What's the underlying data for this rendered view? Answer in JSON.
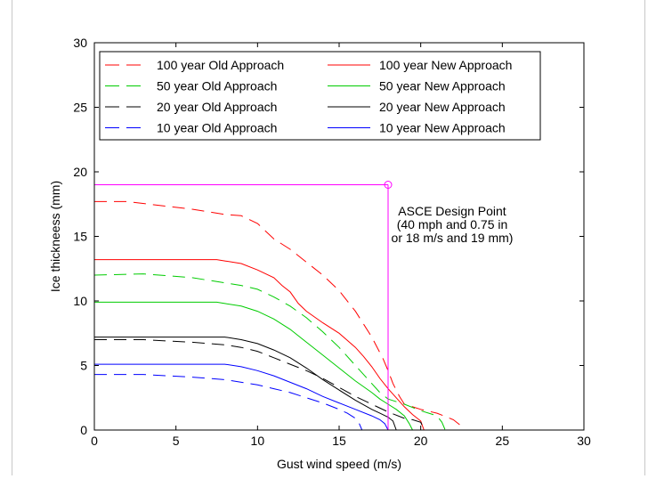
{
  "chart_data": {
    "type": "line",
    "xlabel": "Gust wind speed (m/s)",
    "ylabel": "Ice thickneess (mm)",
    "xlim": [
      0,
      30
    ],
    "ylim": [
      0,
      30
    ],
    "xticks": [
      0,
      5,
      10,
      15,
      20,
      25,
      30
    ],
    "yticks": [
      0,
      5,
      10,
      15,
      20,
      25,
      30
    ],
    "grid": false,
    "legend": {
      "placement": "top-left",
      "columns": 2
    },
    "series": [
      {
        "name": "100 year Old Approach",
        "color": "#ff0000",
        "dash": "dashed",
        "points": [
          [
            0,
            17.7
          ],
          [
            2,
            17.7
          ],
          [
            4,
            17.4
          ],
          [
            6,
            17.1
          ],
          [
            8,
            16.7
          ],
          [
            9,
            16.6
          ],
          [
            10,
            16.0
          ],
          [
            10.5,
            15.4
          ],
          [
            11,
            14.8
          ],
          [
            12,
            14.0
          ],
          [
            13,
            13.0
          ],
          [
            14,
            12.0
          ],
          [
            15,
            10.8
          ],
          [
            16,
            9.2
          ],
          [
            17,
            7.2
          ],
          [
            17.7,
            5.5
          ],
          [
            18,
            4.6
          ],
          [
            18.3,
            3.6
          ],
          [
            18.7,
            2.6
          ],
          [
            19,
            2.0
          ],
          [
            19.5,
            1.8
          ],
          [
            20,
            1.6
          ],
          [
            21,
            1.3
          ],
          [
            22,
            0.8
          ],
          [
            22.4,
            0.4
          ],
          [
            22.5,
            0
          ]
        ]
      },
      {
        "name": "100 year New Approach",
        "color": "#ff0000",
        "dash": "solid",
        "points": [
          [
            0,
            13.2
          ],
          [
            7.5,
            13.2
          ],
          [
            8,
            13.1
          ],
          [
            9,
            12.9
          ],
          [
            10,
            12.4
          ],
          [
            11,
            11.8
          ],
          [
            11.5,
            11.2
          ],
          [
            12,
            10.7
          ],
          [
            12.5,
            9.8
          ],
          [
            13,
            9.2
          ],
          [
            14,
            8.3
          ],
          [
            15,
            7.5
          ],
          [
            16,
            6.4
          ],
          [
            16.5,
            5.7
          ],
          [
            17,
            4.9
          ],
          [
            17.5,
            4.0
          ],
          [
            18,
            3.2
          ],
          [
            18.5,
            2.5
          ],
          [
            19,
            1.8
          ],
          [
            19.5,
            1.2
          ],
          [
            20,
            0.7
          ],
          [
            20.2,
            0
          ]
        ]
      },
      {
        "name": "50 year Old Approach",
        "color": "#00cc00",
        "dash": "dashed",
        "points": [
          [
            0,
            12.0
          ],
          [
            3,
            12.1
          ],
          [
            6,
            11.8
          ],
          [
            8,
            11.4
          ],
          [
            9,
            11.2
          ],
          [
            10,
            10.9
          ],
          [
            11,
            10.3
          ],
          [
            12,
            9.6
          ],
          [
            13,
            8.7
          ],
          [
            14,
            7.6
          ],
          [
            15,
            6.4
          ],
          [
            16,
            5.0
          ],
          [
            17,
            3.6
          ],
          [
            17.5,
            2.9
          ],
          [
            18,
            2.4
          ],
          [
            19,
            2.0
          ],
          [
            20,
            1.5
          ],
          [
            20.5,
            1.3
          ],
          [
            21,
            1.1
          ],
          [
            21.3,
            0.6
          ],
          [
            21.5,
            0
          ]
        ]
      },
      {
        "name": "50 year New Approach",
        "color": "#00cc00",
        "dash": "solid",
        "points": [
          [
            0,
            9.9
          ],
          [
            7.5,
            9.9
          ],
          [
            8,
            9.8
          ],
          [
            9,
            9.6
          ],
          [
            10,
            9.2
          ],
          [
            11,
            8.6
          ],
          [
            12,
            7.8
          ],
          [
            13,
            6.8
          ],
          [
            14,
            5.8
          ],
          [
            15,
            4.8
          ],
          [
            16,
            3.8
          ],
          [
            17,
            2.9
          ],
          [
            17.5,
            2.4
          ],
          [
            18,
            2.0
          ],
          [
            18.5,
            1.6
          ],
          [
            19,
            1.1
          ],
          [
            19.3,
            0.5
          ],
          [
            19.5,
            0
          ]
        ]
      },
      {
        "name": "20 year Old Approach",
        "color": "#000000",
        "dash": "dashed",
        "points": [
          [
            0,
            7.0
          ],
          [
            3,
            7.0
          ],
          [
            6,
            6.8
          ],
          [
            8,
            6.6
          ],
          [
            9,
            6.4
          ],
          [
            10,
            6.1
          ],
          [
            11,
            5.6
          ],
          [
            12,
            5.1
          ],
          [
            13,
            4.6
          ],
          [
            14,
            4.0
          ],
          [
            15,
            3.3
          ],
          [
            16,
            2.6
          ],
          [
            17,
            2.0
          ],
          [
            18,
            1.4
          ],
          [
            19,
            0.9
          ],
          [
            19.5,
            0.8
          ],
          [
            20,
            0.6
          ],
          [
            20.2,
            0
          ]
        ]
      },
      {
        "name": "20 year New Approach",
        "color": "#000000",
        "dash": "solid",
        "points": [
          [
            0,
            7.2
          ],
          [
            8,
            7.2
          ],
          [
            9,
            7.0
          ],
          [
            10,
            6.7
          ],
          [
            11,
            6.2
          ],
          [
            12,
            5.6
          ],
          [
            13,
            4.8
          ],
          [
            14,
            3.9
          ],
          [
            15,
            3.1
          ],
          [
            16,
            2.3
          ],
          [
            17,
            1.6
          ],
          [
            17.5,
            1.3
          ],
          [
            18,
            1.0
          ],
          [
            18.3,
            0.7
          ],
          [
            18.5,
            0
          ]
        ]
      },
      {
        "name": "10 year Old Approach",
        "color": "#0000ff",
        "dash": "dashed",
        "points": [
          [
            0,
            4.3
          ],
          [
            3,
            4.3
          ],
          [
            6,
            4.1
          ],
          [
            8,
            3.9
          ],
          [
            10,
            3.5
          ],
          [
            11,
            3.2
          ],
          [
            12,
            2.9
          ],
          [
            13,
            2.5
          ],
          [
            14,
            2.1
          ],
          [
            15,
            1.6
          ],
          [
            15.5,
            1.3
          ],
          [
            16,
            0.9
          ],
          [
            16.2,
            0.6
          ],
          [
            16.4,
            0
          ]
        ]
      },
      {
        "name": "10 year New Approach",
        "color": "#0000ff",
        "dash": "solid",
        "points": [
          [
            0,
            5.1
          ],
          [
            8,
            5.1
          ],
          [
            9,
            4.9
          ],
          [
            10,
            4.6
          ],
          [
            11,
            4.2
          ],
          [
            12,
            3.7
          ],
          [
            13,
            3.2
          ],
          [
            14,
            2.6
          ],
          [
            15,
            2.1
          ],
          [
            16,
            1.6
          ],
          [
            17,
            1.1
          ],
          [
            17.5,
            0.8
          ],
          [
            17.8,
            0.5
          ],
          [
            18,
            0
          ]
        ]
      }
    ],
    "design_point": {
      "x": 18,
      "y": 19,
      "color": "#ff00ff",
      "label_lines": [
        "ASCE Design Point",
        "(40 mph and 0.75 in",
        "or 18 m/s and 19 mm)"
      ]
    }
  }
}
